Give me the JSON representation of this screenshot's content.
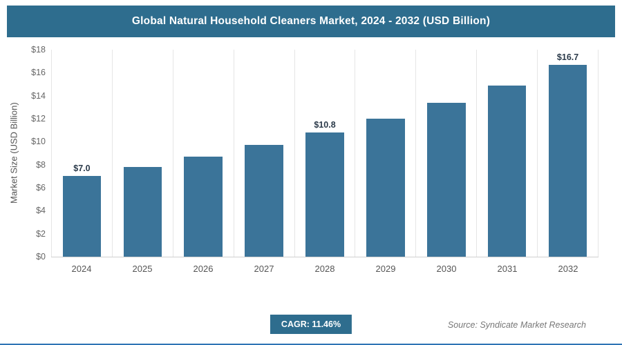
{
  "header": {
    "title": "Global Natural Household Cleaners Market, 2024 - 2032 (USD Billion)"
  },
  "chart_data": {
    "type": "bar",
    "title": "Global Natural Household Cleaners Market, 2024 - 2032 (USD Billion)",
    "categories": [
      "2024",
      "2025",
      "2026",
      "2027",
      "2028",
      "2029",
      "2030",
      "2031",
      "2032"
    ],
    "values": [
      7.0,
      7.8,
      8.7,
      9.7,
      10.8,
      12.0,
      13.4,
      14.9,
      16.7
    ],
    "data_labels": {
      "2024": "$7.0",
      "2028": "$10.8",
      "2032": "$16.7"
    },
    "xlabel": "",
    "ylabel": "Market Size (USD Billion)",
    "ylim": [
      0,
      18
    ],
    "ytick_step": 2,
    "ytick_labels": [
      "$0",
      "$2",
      "$4",
      "$6",
      "$8",
      "$10",
      "$12",
      "$14",
      "$16",
      "$18"
    ],
    "grid": "vertical",
    "legend": "none",
    "bar_color": "#3b7499"
  },
  "footer": {
    "cagr_label": "CAGR: 11.46%",
    "source": "Source: Syndicate Market Research"
  }
}
